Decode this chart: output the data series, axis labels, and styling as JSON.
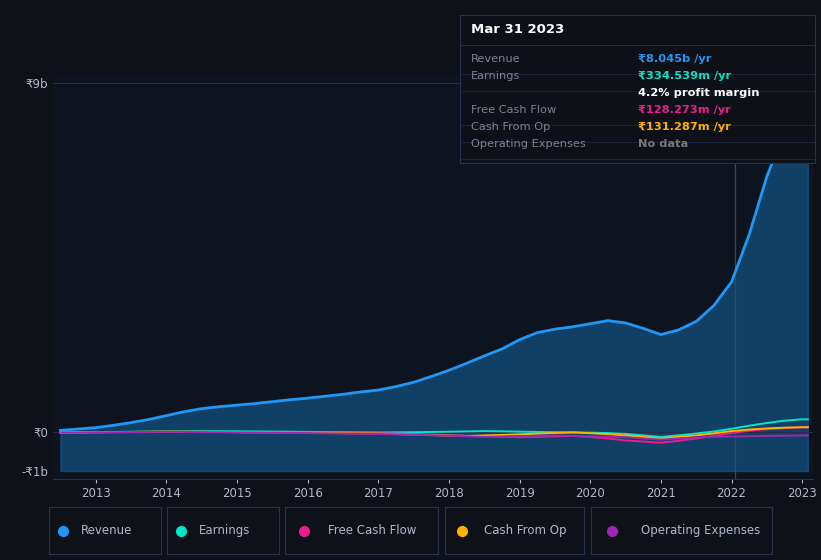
{
  "background_color": "#0e1117",
  "plot_bg_color": "#0d1420",
  "grid_color": "#2a2a4a",
  "years": [
    2012.5,
    2013.0,
    2013.25,
    2013.5,
    2013.75,
    2014.0,
    2014.25,
    2014.5,
    2014.75,
    2015.0,
    2015.25,
    2015.5,
    2015.75,
    2016.0,
    2016.25,
    2016.5,
    2016.75,
    2017.0,
    2017.25,
    2017.5,
    2017.75,
    2018.0,
    2018.25,
    2018.5,
    2018.75,
    2019.0,
    2019.25,
    2019.5,
    2019.75,
    2020.0,
    2020.25,
    2020.5,
    2020.75,
    2021.0,
    2021.25,
    2021.5,
    2021.75,
    2022.0,
    2022.25,
    2022.5,
    2022.75,
    2023.0,
    2023.08
  ],
  "revenue_m": [
    50,
    120,
    180,
    250,
    330,
    430,
    530,
    610,
    660,
    700,
    740,
    790,
    840,
    880,
    930,
    980,
    1040,
    1090,
    1180,
    1290,
    1440,
    1600,
    1780,
    1970,
    2150,
    2390,
    2570,
    2660,
    2720,
    2800,
    2880,
    2820,
    2680,
    2520,
    2640,
    2860,
    3270,
    3880,
    5100,
    6600,
    7750,
    8700,
    8045
  ],
  "earnings_m": [
    -5,
    5,
    8,
    12,
    16,
    20,
    22,
    25,
    27,
    25,
    22,
    18,
    14,
    10,
    6,
    2,
    -2,
    -5,
    -2,
    2,
    8,
    14,
    22,
    30,
    24,
    16,
    8,
    2,
    -4,
    -10,
    -20,
    -40,
    -80,
    -120,
    -80,
    -30,
    20,
    90,
    170,
    240,
    300,
    334,
    334
  ],
  "free_cash_flow_m": [
    -8,
    -4,
    -2,
    2,
    6,
    10,
    8,
    6,
    4,
    2,
    0,
    -2,
    -4,
    -6,
    -10,
    -14,
    -18,
    -24,
    -32,
    -42,
    -56,
    -72,
    -88,
    -104,
    -116,
    -128,
    -118,
    -106,
    -94,
    -120,
    -160,
    -210,
    -240,
    -270,
    -220,
    -160,
    -90,
    -20,
    40,
    80,
    110,
    128,
    128
  ],
  "cash_from_op_m": [
    -4,
    2,
    5,
    9,
    13,
    16,
    14,
    12,
    8,
    4,
    0,
    -4,
    -8,
    -12,
    -16,
    -22,
    -28,
    -36,
    -46,
    -58,
    -72,
    -86,
    -96,
    -82,
    -68,
    -52,
    -36,
    -18,
    -2,
    -24,
    -48,
    -80,
    -120,
    -160,
    -120,
    -80,
    -28,
    30,
    70,
    100,
    118,
    131,
    131
  ],
  "op_expenses_m": [
    -6,
    -2,
    0,
    4,
    8,
    10,
    8,
    4,
    0,
    -4,
    -8,
    -12,
    -16,
    -20,
    -26,
    -32,
    -38,
    -46,
    -54,
    -64,
    -76,
    -90,
    -104,
    -118,
    -110,
    -102,
    -92,
    -80,
    -92,
    -104,
    -116,
    -128,
    -160,
    -190,
    -160,
    -130,
    -116,
    -110,
    -102,
    -94,
    -88,
    -82,
    -82
  ],
  "revenue_color": "#2196f3",
  "revenue_fill_color": "#1565a0",
  "earnings_color": "#00e5cc",
  "free_cash_flow_color": "#e91e8c",
  "cash_from_op_color": "#ffb300",
  "op_expenses_color": "#9c27b0",
  "ymin_m": -1000,
  "ymax_m": 9000,
  "ytick_labels": [
    "-₹1b",
    "₹0",
    "₹9b"
  ],
  "ytick_vals_m": [
    -1000,
    0,
    9000
  ],
  "xticks": [
    2013,
    2014,
    2015,
    2016,
    2017,
    2018,
    2019,
    2020,
    2021,
    2022,
    2023
  ],
  "xmin": 2012.4,
  "xmax": 2023.15,
  "info_box": {
    "title": "Mar 31 2023",
    "rows": [
      {
        "label": "Revenue",
        "value": "₹8.045b /yr",
        "value_color": "#2196f3",
        "extra": null
      },
      {
        "label": "Earnings",
        "value": "₹334.539m /yr",
        "value_color": "#00e5cc",
        "extra": "4.2% profit margin",
        "extra_color": "#ffffff"
      },
      {
        "label": "Free Cash Flow",
        "value": "₹128.273m /yr",
        "value_color": "#e91e8c",
        "extra": null
      },
      {
        "label": "Cash From Op",
        "value": "₹131.287m /yr",
        "value_color": "#ffb300",
        "extra": null
      },
      {
        "label": "Operating Expenses",
        "value": "No data",
        "value_color": "#777777",
        "extra": null
      }
    ]
  },
  "legend": [
    {
      "label": "Revenue",
      "color": "#2196f3"
    },
    {
      "label": "Earnings",
      "color": "#00e5cc"
    },
    {
      "label": "Free Cash Flow",
      "color": "#e91e8c"
    },
    {
      "label": "Cash From Op",
      "color": "#ffb300"
    },
    {
      "label": "Operating Expenses",
      "color": "#9c27b0"
    }
  ],
  "vertical_line_x": 2022.05,
  "text_color": "#b0b8c8",
  "label_color": "#7a8090",
  "border_color": "#2a3050"
}
